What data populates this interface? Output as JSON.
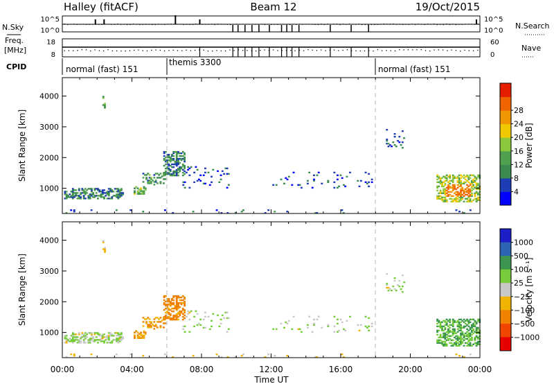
{
  "header": {
    "station": "Halley (fitACF)",
    "beam": "Beam 12",
    "date": "19/Oct/2015"
  },
  "panels": {
    "nsky": {
      "label": "N.Sky",
      "ticks_left": [
        "10^5",
        "10^0"
      ],
      "ticks_right": [
        "10^5",
        "10^0"
      ],
      "right_label": "N.Search"
    },
    "freq": {
      "label": "Freq.",
      "unit": "[MHz]",
      "ticks_left": [
        "18",
        "8"
      ],
      "ticks_right": [
        "60",
        "0"
      ],
      "right_label": "Nave"
    },
    "cpid": {
      "label": "CPID",
      "segments": [
        "normal (fast) 151",
        "themis 3300",
        "normal (fast) 151"
      ]
    }
  },
  "chart_data": [
    {
      "type": "heatmap",
      "title": "",
      "xlabel": "Time UT",
      "ylabel": "Slant Range [km]",
      "x_ticks": [
        "00:00",
        "04:00",
        "08:00",
        "12:00",
        "16:00",
        "20:00",
        "00:00"
      ],
      "xlim_hours": [
        0,
        24
      ],
      "y_ticks": [
        "1000",
        "2000",
        "3000",
        "4000"
      ],
      "ylim_km": [
        180,
        4600
      ],
      "colorbar": {
        "label": "Power [dB]",
        "ticks": [
          "4",
          "8",
          "12",
          "16",
          "20",
          "24",
          "28"
        ],
        "range": [
          0,
          32
        ]
      },
      "mode_boundaries_hours": [
        6.0,
        18.0
      ]
    },
    {
      "type": "heatmap",
      "title": "",
      "xlabel": "Time UT",
      "ylabel": "Slant Range [km]",
      "x_ticks": [
        "00:00",
        "04:00",
        "08:00",
        "12:00",
        "16:00",
        "20:00",
        "00:00"
      ],
      "xlim_hours": [
        0,
        24
      ],
      "y_ticks": [
        "1000",
        "2000",
        "3000",
        "4000"
      ],
      "ylim_km": [
        180,
        4600
      ],
      "colorbar": {
        "label": "Velocity [m s⁻¹]",
        "ticks": [
          "1000",
          "500",
          "100",
          "25",
          "−25",
          "−100",
          "−500",
          "−1000"
        ]
      },
      "mode_boundaries_hours": [
        6.0,
        18.0
      ]
    }
  ],
  "colors": {
    "power_scale": [
      "#0000ff",
      "#1e3cb4",
      "#3c8c50",
      "#50a050",
      "#8cc83c",
      "#f0c800",
      "#f09600",
      "#f06400",
      "#e61e00"
    ],
    "velocity_scale": [
      "#1e1ec8",
      "#2d64b4",
      "#3c9650",
      "#78cc3c",
      "#c8c8c8",
      "#f0b400",
      "#f08200",
      "#f04600",
      "#e60000"
    ]
  }
}
